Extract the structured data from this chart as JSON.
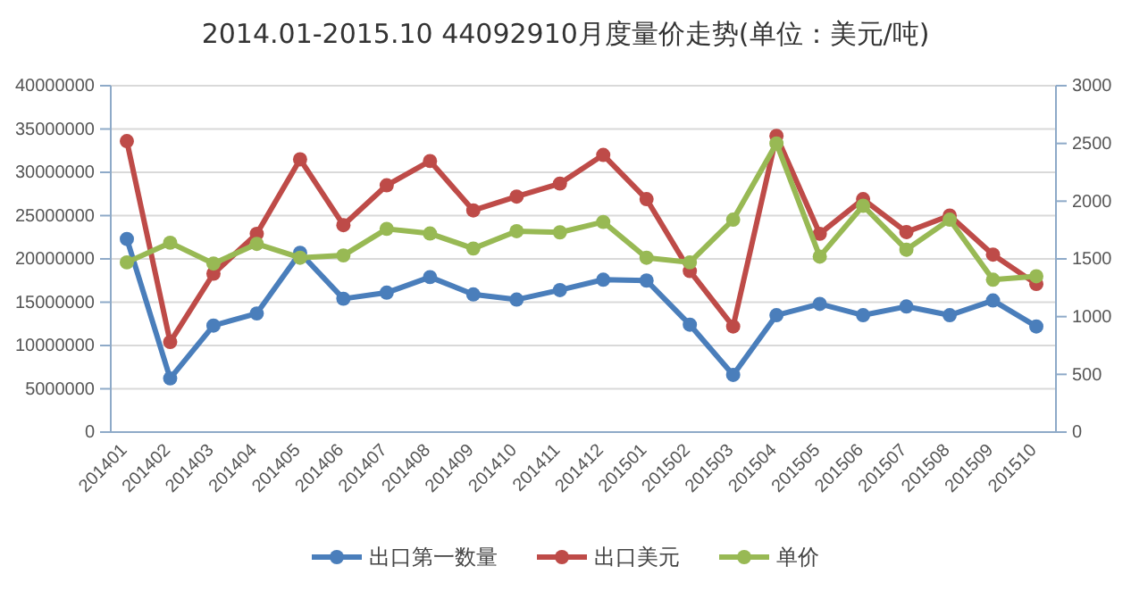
{
  "chart_data": {
    "type": "line",
    "title": "2014.01-2015.10 44092910月度量价走势(单位：美元/吨)",
    "categories": [
      "201401",
      "201402",
      "201403",
      "201404",
      "201405",
      "201406",
      "201407",
      "201408",
      "201409",
      "201410",
      "201411",
      "201412",
      "201501",
      "201502",
      "201503",
      "201504",
      "201505",
      "201506",
      "201507",
      "201508",
      "201509",
      "201510"
    ],
    "series": [
      {
        "name": "出口第一数量",
        "color": "#4a7ebb",
        "values": [
          22300000,
          6200000,
          12300000,
          13700000,
          20700000,
          15400000,
          16100000,
          17900000,
          15900000,
          15300000,
          16400000,
          17600000,
          17500000,
          12400000,
          6600000,
          13500000,
          14800000,
          13500000,
          14500000,
          13500000,
          15200000,
          12200000
        ]
      },
      {
        "name": "出口美元",
        "color": "#be4b48",
        "values": [
          33600000,
          10400000,
          18300000,
          22900000,
          31500000,
          23900000,
          28500000,
          31300000,
          25600000,
          27200000,
          28700000,
          32000000,
          26900000,
          18600000,
          12200000,
          34200000,
          22900000,
          26900000,
          23100000,
          25000000,
          20500000,
          17100000
        ]
      },
      {
        "name": "单价",
        "color": "#98b954",
        "axis": "y2",
        "values": [
          1470,
          1640,
          1460,
          1630,
          1510,
          1530,
          1760,
          1720,
          1590,
          1740,
          1730,
          1820,
          1510,
          1470,
          1840,
          2500,
          1520,
          1960,
          1580,
          1840,
          1320,
          1350
        ]
      }
    ],
    "ylim": [
      0,
      40000000
    ],
    "yticks": [
      0,
      5000000,
      10000000,
      15000000,
      20000000,
      25000000,
      30000000,
      35000000,
      40000000
    ],
    "y2lim": [
      0,
      3000
    ],
    "y2ticks": [
      0,
      500,
      1000,
      1500,
      2000,
      2500,
      3000
    ],
    "grid": "y",
    "legend": "bottom",
    "marker": "circle",
    "line_style": "solid"
  }
}
